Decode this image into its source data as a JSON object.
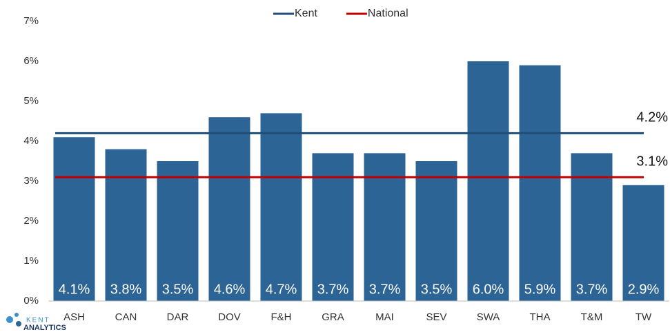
{
  "chart_data": {
    "type": "bar",
    "categories": [
      "ASH",
      "CAN",
      "DAR",
      "DOV",
      "F&H",
      "GRA",
      "MAI",
      "SEV",
      "SWA",
      "THA",
      "T&M",
      "TW"
    ],
    "values": [
      4.1,
      3.8,
      3.5,
      4.6,
      4.7,
      3.7,
      3.7,
      3.5,
      6.0,
      5.9,
      3.7,
      2.9
    ],
    "value_labels": [
      "4.1%",
      "3.8%",
      "3.5%",
      "4.6%",
      "4.7%",
      "3.7%",
      "3.7%",
      "3.5%",
      "6.0%",
      "5.9%",
      "3.7%",
      "2.9%"
    ],
    "color": "#2c6496",
    "ylim": [
      0,
      7
    ],
    "yticks": [
      {
        "value": 0,
        "label": "0%"
      },
      {
        "value": 1,
        "label": "1%"
      },
      {
        "value": 2,
        "label": "2%"
      },
      {
        "value": 3,
        "label": "3%"
      },
      {
        "value": 4,
        "label": "4%"
      },
      {
        "value": 5,
        "label": "5%"
      },
      {
        "value": 6,
        "label": "6%"
      },
      {
        "value": 7,
        "label": "7%"
      }
    ],
    "grid": false,
    "lines": [
      {
        "name": "Kent",
        "color": "#1f4e79",
        "value": 4.2,
        "value_label": "4.2%"
      },
      {
        "name": "National",
        "color": "#c00000",
        "value": 3.1,
        "value_label": "3.1%"
      }
    ]
  },
  "logo": {
    "line1": "KENT",
    "line2": "ANALYTICS"
  }
}
